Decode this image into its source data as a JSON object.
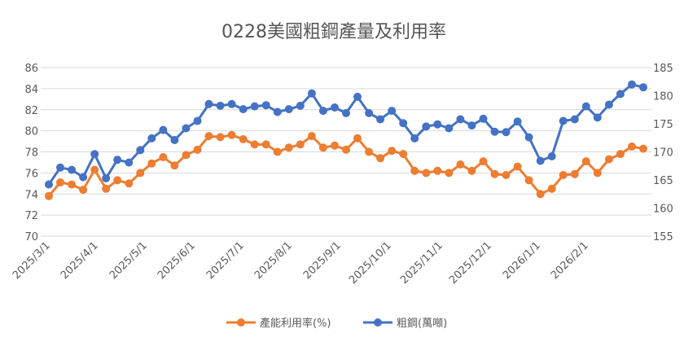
{
  "chart_data": {
    "type": "line",
    "title": "0228美國粗鋼產量及利用率",
    "x_tick_labels": [
      "2025/3/1",
      "2025/4/1",
      "2025/5/1",
      "2025/6/1",
      "2025/7/1",
      "2025/8/1",
      "2025/9/1",
      "2025/10/1",
      "2025/11/1",
      "2025/12/1",
      "2026/1/1",
      "2026/2/1"
    ],
    "left_axis": {
      "min": 70,
      "max": 86,
      "step": 2,
      "ticks": [
        "70",
        "72",
        "74",
        "76",
        "78",
        "80",
        "82",
        "84",
        "86"
      ]
    },
    "right_axis": {
      "min": 155,
      "max": 185,
      "step": 5,
      "ticks": [
        "155",
        "160",
        "165",
        "170",
        "175",
        "180",
        "185"
      ]
    },
    "grid": true,
    "legend_position": "bottom",
    "series": [
      {
        "name": "產能利用率(%)",
        "axis": "left",
        "color": "#ED7D31",
        "values": [
          73.8,
          75.1,
          74.9,
          74.4,
          76.3,
          74.5,
          75.3,
          75.0,
          76.0,
          76.9,
          77.5,
          76.7,
          77.7,
          78.2,
          79.5,
          79.4,
          79.6,
          79.2,
          78.7,
          78.7,
          78.0,
          78.4,
          78.7,
          79.5,
          78.4,
          78.6,
          78.2,
          79.3,
          78.0,
          77.4,
          78.1,
          77.8,
          76.2,
          76.0,
          76.2,
          76.0,
          76.8,
          76.2,
          77.1,
          75.9,
          75.8,
          76.6,
          75.3,
          74.0,
          74.5,
          75.8,
          75.9,
          77.1,
          76.0,
          77.3,
          77.8,
          78.5,
          78.3
        ]
      },
      {
        "name": "粗鋼(萬噸)",
        "axis": "right",
        "color": "#4472C4",
        "values": [
          164.2,
          167.2,
          166.8,
          165.5,
          169.6,
          165.3,
          168.6,
          168.1,
          170.3,
          172.4,
          173.9,
          172.1,
          174.2,
          175.5,
          178.5,
          178.2,
          178.5,
          177.6,
          178.1,
          178.3,
          177.1,
          177.6,
          178.2,
          180.4,
          177.3,
          177.9,
          176.9,
          179.8,
          176.9,
          175.8,
          177.3,
          175.1,
          172.4,
          174.5,
          174.9,
          174.2,
          175.8,
          174.7,
          175.9,
          173.6,
          173.5,
          175.4,
          172.6,
          168.4,
          169.2,
          175.5,
          175.8,
          178.1,
          176.1,
          178.4,
          180.3,
          182.0,
          181.5
        ]
      }
    ]
  }
}
